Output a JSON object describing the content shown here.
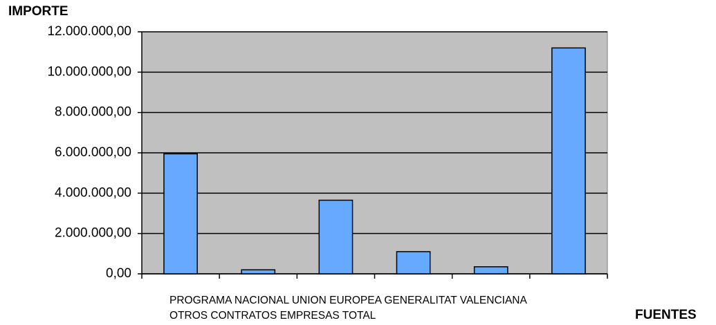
{
  "chart_data": {
    "type": "bar",
    "y_label": "IMPORTE",
    "x_label": "FUENTES",
    "categories": [
      "PROGRAMA NACIONAL",
      "UNION EUROPEA",
      "GENERALITAT VALENCIANA",
      "OTROS CONTRATOS",
      "EMPRESAS",
      "TOTAL"
    ],
    "values": [
      5950000,
      200000,
      3650000,
      1100000,
      350000,
      11200000
    ],
    "color": "#66aaff",
    "plot_background": "#c0c0c0",
    "ylim": [
      0,
      12000000
    ],
    "yticks": [
      {
        "value": 0,
        "label": "0,00"
      },
      {
        "value": 2000000,
        "label": "2.000.000,00"
      },
      {
        "value": 4000000,
        "label": "4.000.000,00"
      },
      {
        "value": 6000000,
        "label": "6.000.000,00"
      },
      {
        "value": 8000000,
        "label": "8.000.000,00"
      },
      {
        "value": 10000000,
        "label": "10.000.000,00"
      },
      {
        "value": 12000000,
        "label": "12.000.000,00"
      }
    ],
    "grid": true
  }
}
